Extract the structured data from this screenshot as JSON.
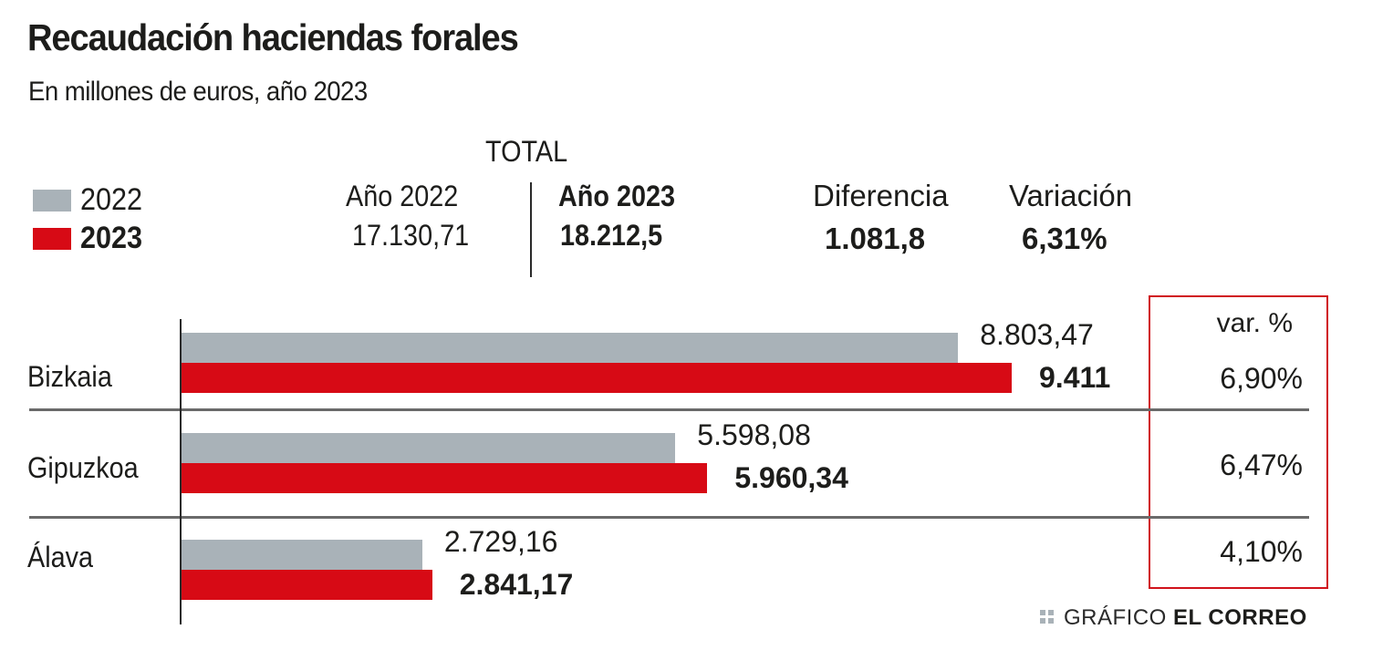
{
  "header": {
    "title": "Recaudación haciendas forales",
    "subtitle": "En millones de euros, año 2023"
  },
  "legend": [
    {
      "label": "2022",
      "color": "#a9b2b8"
    },
    {
      "label": "2023",
      "color": "#d70a15"
    }
  ],
  "totals": {
    "section_label": "TOTAL",
    "year_2022_label": "Año 2022",
    "year_2022_value": "17.130,71",
    "year_2023_label": "Año 2023",
    "year_2023_value": "18.212,5",
    "difference_label": "Diferencia",
    "difference_value": "1.081,8",
    "variation_label": "Variación",
    "variation_value": "6,31%"
  },
  "var_column": {
    "header": "var. %",
    "border_color": "#d0121b"
  },
  "credit": {
    "prefix": "GRÁFICO",
    "brand": "EL CORREO"
  },
  "chart_data": {
    "type": "bar",
    "orientation": "horizontal",
    "title": "Recaudación haciendas forales",
    "subtitle": "En millones de euros, año 2023",
    "xlabel": "",
    "ylabel": "",
    "xlim": [
      0,
      9411
    ],
    "grid": false,
    "legend_position": "top-left",
    "categories": [
      "Bizkaia",
      "Gipuzkoa",
      "Álava"
    ],
    "series": [
      {
        "name": "2022",
        "color": "#a9b2b8",
        "values": [
          8803.47,
          5598.08,
          2729.16
        ],
        "labels": [
          "8.803,47",
          "5.598,08",
          "2.729,16"
        ]
      },
      {
        "name": "2023",
        "color": "#d70a15",
        "values": [
          9411,
          5960.34,
          2841.17
        ],
        "labels": [
          "9.411",
          "5.960,34",
          "2.841,17"
        ]
      }
    ],
    "variation_pct": [
      6.9,
      6.47,
      4.1
    ],
    "variation_labels": [
      "6,90%",
      "6,47%",
      "4,10%"
    ]
  }
}
